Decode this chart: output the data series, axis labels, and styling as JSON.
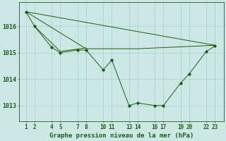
{
  "background_color": "#cce8e4",
  "grid_color": "#aacfcb",
  "line_color": "#1a5c1a",
  "marker_color": "#1a5c1a",
  "xlabel": "Graphe pression niveau de la mer (hPa)",
  "xlabel_fontsize": 6.5,
  "ylabel_fontsize": 6,
  "tick_fontsize": 5.5,
  "xtick_labels": [
    "1",
    "2",
    "4",
    "5",
    "7",
    "8",
    "10",
    "11",
    "13",
    "14",
    "16",
    "17",
    "19",
    "20",
    "22",
    "23"
  ],
  "xtick_positions": [
    1,
    2,
    4,
    5,
    7,
    8,
    10,
    11,
    13,
    14,
    16,
    17,
    19,
    20,
    22,
    23
  ],
  "ytick_positions": [
    1013,
    1014,
    1015,
    1016
  ],
  "ylim": [
    1012.4,
    1016.9
  ],
  "xlim": [
    0.2,
    24.0
  ],
  "line_main": {
    "x": [
      1,
      2,
      4,
      5,
      7,
      8,
      10,
      11,
      13,
      14,
      16,
      17,
      19,
      20,
      22,
      23
    ],
    "y": [
      1016.55,
      1016.0,
      1015.2,
      1015.0,
      1015.1,
      1015.1,
      1014.35,
      1014.72,
      1013.0,
      1013.1,
      1013.0,
      1013.0,
      1013.85,
      1014.2,
      1015.05,
      1015.25
    ]
  },
  "line_flat1": {
    "x": [
      1,
      23
    ],
    "y": [
      1016.55,
      1015.28
    ]
  },
  "line_flat2": {
    "x": [
      1,
      8,
      14,
      23
    ],
    "y": [
      1016.55,
      1015.15,
      1015.15,
      1015.28
    ]
  },
  "line_flat3": {
    "x": [
      2,
      5,
      8
    ],
    "y": [
      1016.0,
      1015.05,
      1015.18
    ]
  }
}
